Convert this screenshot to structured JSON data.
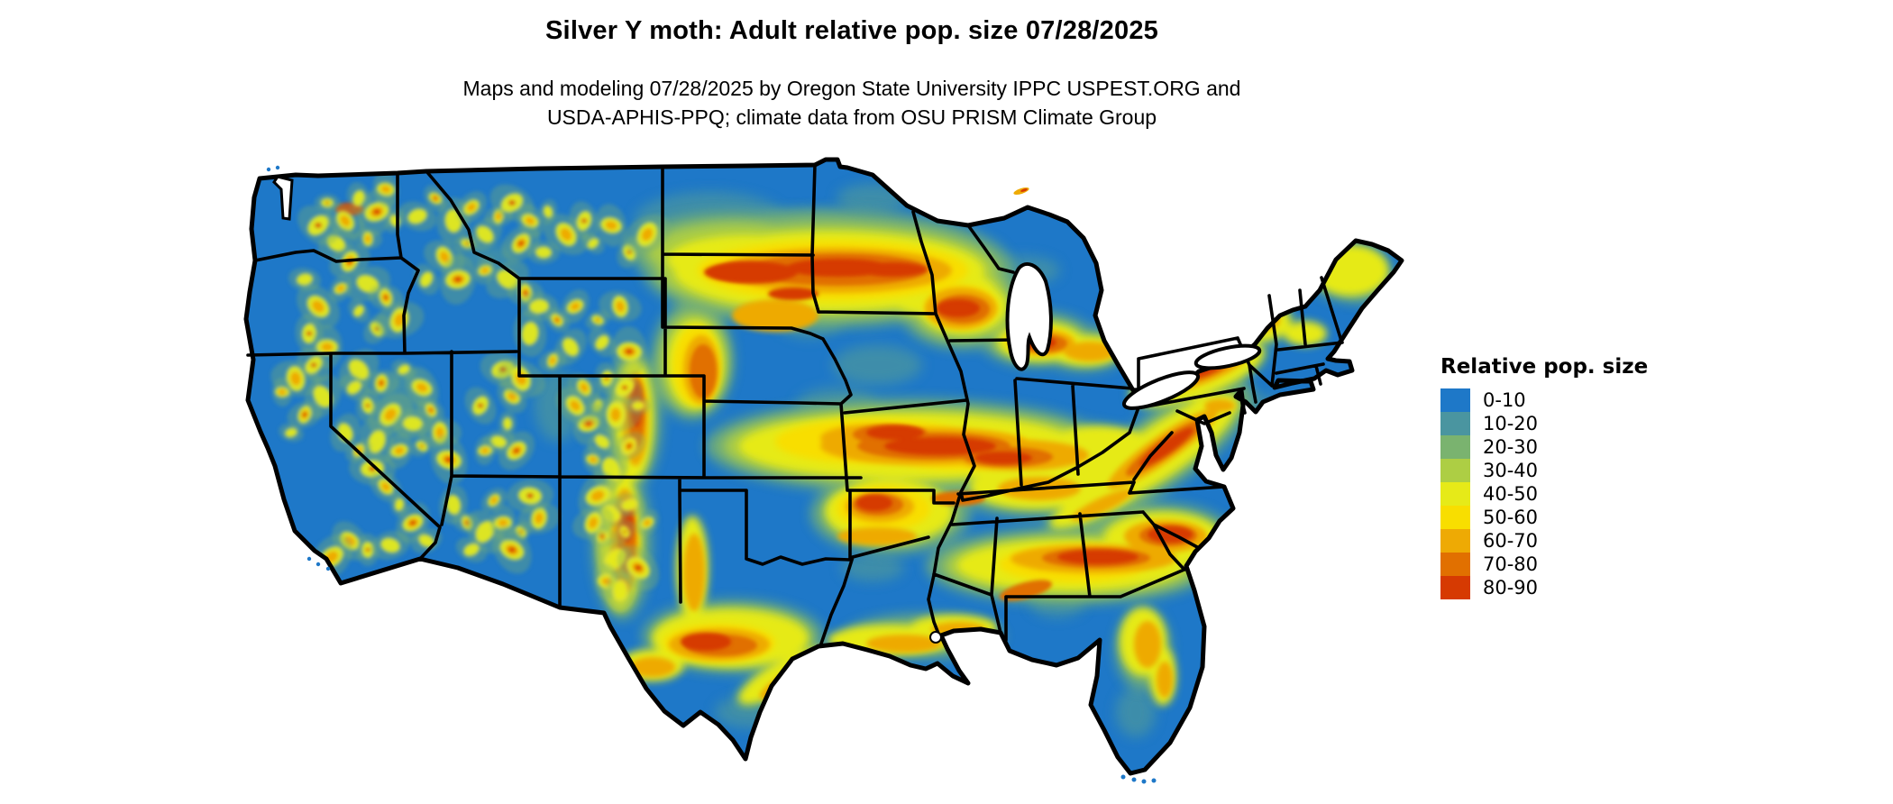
{
  "title": "Silver Y moth: Adult relative pop. size 07/28/2025",
  "subtitle": {
    "line1": "Maps and modeling 07/28/2025 by Oregon State University IPPC USPEST.ORG and",
    "line2": "USDA-APHIS-PPQ; climate data from OSU PRISM Climate Group"
  },
  "map": {
    "region_label": "Continental United States",
    "base_color": "#1E78C8",
    "lake_color": "#FFFFFF",
    "state_border_color": "#000000",
    "background_color": "#FFFFFF"
  },
  "legend": {
    "title": "Relative pop. size",
    "items": [
      {
        "label": "0-10",
        "color": "#1E78C8"
      },
      {
        "label": "10-20",
        "color": "#4A95A0"
      },
      {
        "label": "20-30",
        "color": "#7AB36F"
      },
      {
        "label": "30-40",
        "color": "#ADCE44"
      },
      {
        "label": "40-50",
        "color": "#E6EA18"
      },
      {
        "label": "50-60",
        "color": "#F8DE00"
      },
      {
        "label": "60-70",
        "color": "#EEAA04"
      },
      {
        "label": "70-80",
        "color": "#E17000"
      },
      {
        "label": "80-90",
        "color": "#D63A02"
      }
    ]
  },
  "chart_data": {
    "type": "heatmap",
    "title": "Silver Y moth: Adult relative pop. size 07/28/2025",
    "legend_title": "Relative pop. size",
    "bins": [
      "0-10",
      "10-20",
      "20-30",
      "30-40",
      "40-50",
      "50-60",
      "60-70",
      "70-80",
      "80-90"
    ],
    "bin_colors": [
      "#1E78C8",
      "#4A95A0",
      "#7AB36F",
      "#ADCE44",
      "#E6EA18",
      "#F8DE00",
      "#EEAA04",
      "#E17000",
      "#D63A02"
    ]
  }
}
